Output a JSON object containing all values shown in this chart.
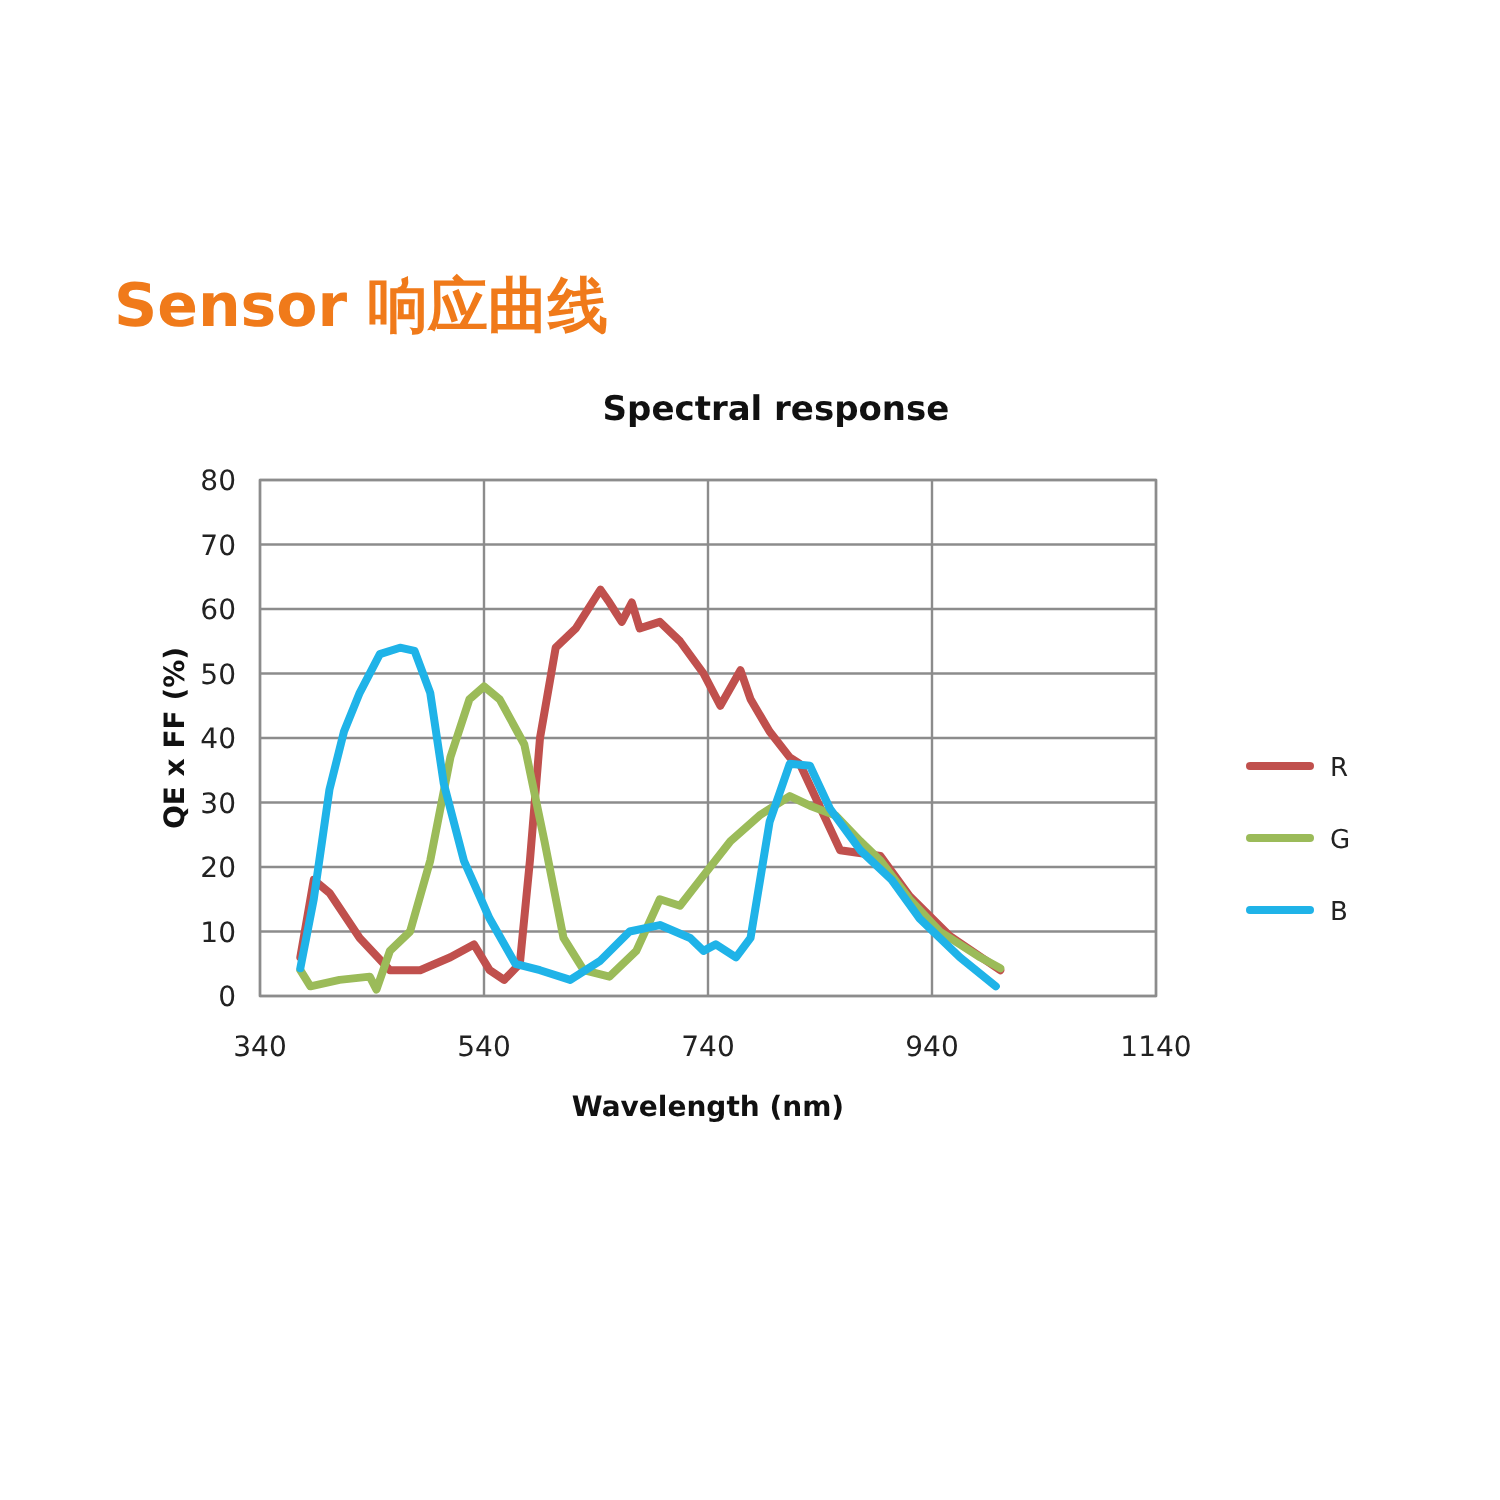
{
  "chart_data": {
    "type": "line",
    "title": "Sensor 响应曲线",
    "subtitle": "Spectral response",
    "xlabel": "Wavelength (nm)",
    "ylabel": "QE x FF (%)",
    "xlim": [
      340,
      1140
    ],
    "xticks": [
      340,
      540,
      740,
      940,
      1140
    ],
    "ylim": [
      0,
      80
    ],
    "yticks": [
      0,
      10,
      20,
      30,
      40,
      50,
      60,
      70,
      80
    ],
    "grid": true,
    "legend": "right",
    "marker": "none",
    "line_style": "solid",
    "series": [
      {
        "name": "R",
        "color": "#c0504d",
        "x": [
          376,
          388,
          402,
          429,
          456,
          483,
          510,
          531,
          545,
          558,
          572,
          581,
          590,
          604,
          622,
          644,
          652,
          663,
          672,
          679,
          697,
          715,
          736,
          751,
          769,
          778,
          795,
          813,
          822,
          858,
          894,
          920,
          956,
          1001
        ],
        "values": [
          6,
          18,
          16,
          9,
          4,
          4,
          6,
          8,
          4,
          2.5,
          5,
          21,
          40,
          54,
          57,
          63,
          61,
          58,
          61,
          57,
          58,
          55,
          50,
          45,
          50.5,
          46,
          41,
          37,
          36,
          22.6,
          21.7,
          15.5,
          9.3,
          4
        ]
      },
      {
        "name": "G",
        "color": "#9bbb59",
        "x": [
          376,
          385,
          411,
          438,
          444,
          456,
          474,
          492,
          510,
          527,
          540,
          554,
          576,
          594,
          611,
          629,
          652,
          676,
          697,
          715,
          733,
          760,
          786,
          813,
          831,
          854,
          876,
          894,
          920,
          947,
          983,
          1001
        ],
        "values": [
          4,
          1.5,
          2.5,
          3,
          1,
          7,
          10,
          21,
          37,
          46,
          48,
          46,
          39,
          24,
          9,
          4,
          3,
          7,
          15,
          14,
          18,
          24,
          28,
          31,
          29.5,
          28,
          24,
          21,
          15,
          10,
          6,
          4.3
        ]
      },
      {
        "name": "B",
        "color": "#1fb3e8",
        "x": [
          376,
          388,
          402,
          415,
          429,
          447,
          465,
          478,
          492,
          504,
          522,
          545,
          568,
          590,
          617,
          644,
          670,
          697,
          724,
          736,
          747,
          765,
          778,
          795,
          813,
          831,
          849,
          876,
          904,
          929,
          965,
          997
        ],
        "values": [
          4.3,
          15,
          32,
          41,
          47,
          53,
          54,
          53.5,
          47,
          33,
          21,
          12,
          5,
          4,
          2.5,
          5.5,
          10,
          11,
          9,
          7,
          8,
          6,
          9,
          27,
          36,
          35.7,
          29,
          22.6,
          18,
          12,
          6,
          1.5
        ]
      }
    ]
  }
}
